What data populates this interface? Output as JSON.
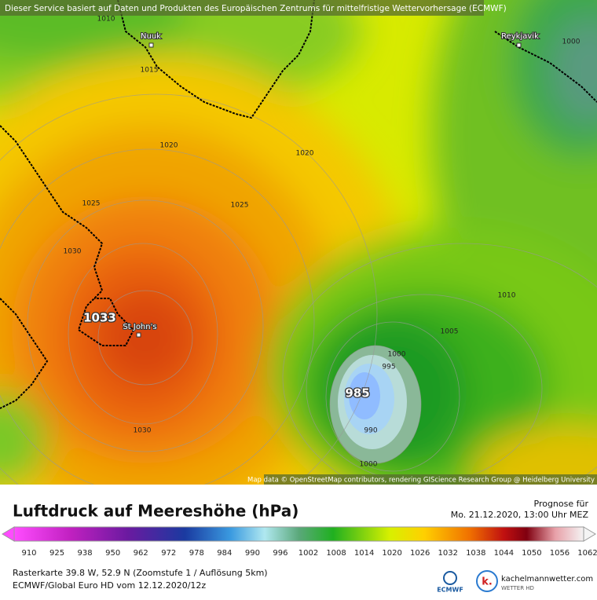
{
  "banner": "Dieser Service basiert auf Daten und Produkten des Europäischen Zentrums für mittelfristige Wettervorhersage (ECMWF)",
  "map": {
    "cities": [
      "Nuuk",
      "Reykjavik",
      "St John's"
    ],
    "isobar_labels": [
      1010,
      1015,
      1020,
      1020,
      1025,
      1025,
      1030,
      1033,
      1030,
      1010,
      1005,
      1000,
      995,
      985,
      990,
      1000,
      1000
    ],
    "attribution": "Map data © OpenStreetMap contributors, rendering GIScience Research Group @ Heidelberg University"
  },
  "legend": {
    "title": "Luftdruck auf Meereshöhe (hPa)",
    "forecast_label": "Prognose für",
    "forecast_date": "Mo. 21.12.2020, 13:00 Uhr MEZ",
    "ticks": [
      910,
      925,
      938,
      950,
      962,
      972,
      978,
      984,
      990,
      996,
      1002,
      1008,
      1014,
      1020,
      1026,
      1032,
      1038,
      1044,
      1050,
      1056,
      1062
    ],
    "raster_info": "Rasterkarte 39.8 W, 52.9 N (Zoomstufe 1 / Auflösung 5km)",
    "model_info": "ECMWF/Global Euro HD vom  12.12.2020/12z",
    "logo_ecmwf": "ECMWF",
    "logo_k": "k.",
    "site": "kachelmannwetter.com",
    "site_sub": "WETTER HD"
  }
}
